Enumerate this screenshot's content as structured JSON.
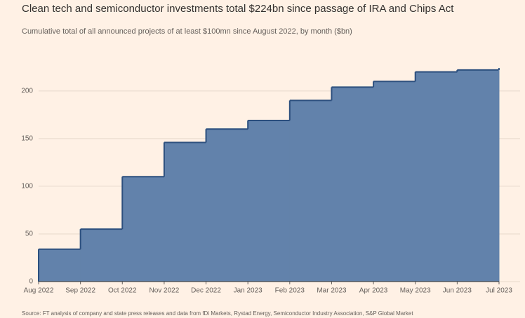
{
  "chart_data": {
    "type": "step-area",
    "title": "Clean tech and semiconductor investments total $224bn since passage of IRA and Chips Act",
    "subtitle": "Cumulative total of all announced projects of at least $100mn since August 2022, by month ($bn)",
    "source": "Source: FT analysis of company and state press releases and data from fDi Markets, Rystad Energy, Semiconductor Industry Association, S&P Global Market",
    "categories": [
      "Aug 2022",
      "Sep 2022",
      "Oct 2022",
      "Nov 2022",
      "Dec 2022",
      "Jan 2023",
      "Feb 2023",
      "Mar 2023",
      "Apr 2023",
      "May 2023",
      "Jun 2023",
      "Jul 2023"
    ],
    "values": [
      34,
      55,
      110,
      146,
      160,
      169,
      190,
      204,
      210,
      220,
      222,
      224
    ],
    "color": "#6282ab",
    "line_color": "#2c4f7e",
    "ylim": [
      0,
      230
    ],
    "yticks": [
      0,
      50,
      100,
      150,
      200
    ],
    "grid": true
  }
}
